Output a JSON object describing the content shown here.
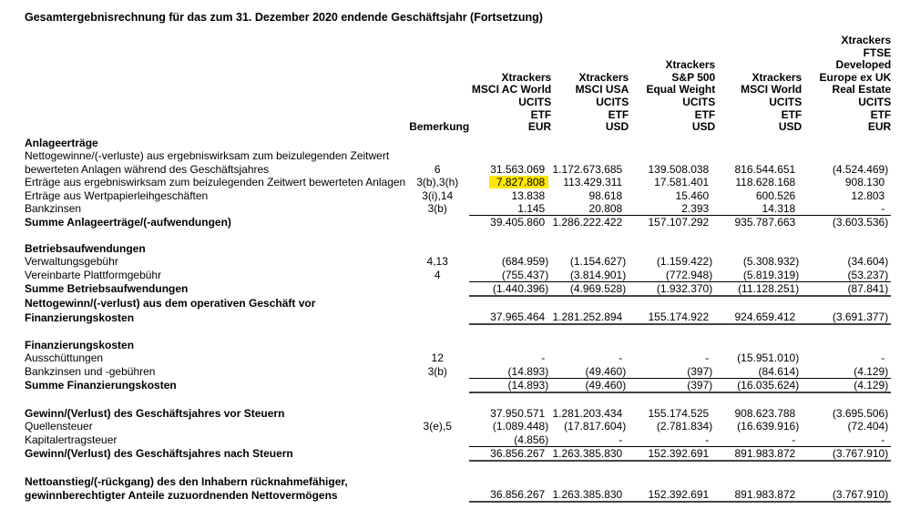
{
  "title": "Gesamtergebnisrechnung für das zum 31. Dezember 2020 endende Geschäftsjahr (Fortsetzung)",
  "header": {
    "note_label": "Bemerkung",
    "columns": [
      [
        "Xtrackers",
        "MSCI AC World",
        "UCITS",
        "ETF",
        "EUR"
      ],
      [
        "Xtrackers",
        "MSCI USA",
        "UCITS",
        "ETF",
        "USD"
      ],
      [
        "Xtrackers",
        "S&P 500",
        "Equal Weight",
        "UCITS",
        "ETF",
        "USD"
      ],
      [
        "Xtrackers",
        "MSCI World",
        "UCITS",
        "ETF",
        "USD"
      ],
      [
        "Xtrackers",
        "FTSE",
        "Developed",
        "Europe ex UK",
        "Real Estate",
        "UCITS",
        "ETF",
        "EUR"
      ]
    ]
  },
  "highlight_color": "#ffe600",
  "rows": [
    {
      "label": "Anlageerträge",
      "type": "heading"
    },
    {
      "label": "Nettogewinne/(-verluste) aus ergebniswirksam zum beizulegenden Zeitwert",
      "type": "text"
    },
    {
      "label": "bewerteten Anlagen während des Geschäftsjahres",
      "note": "6",
      "values": [
        "31.563.069",
        "1.172.673.685",
        "139.508.038",
        "816.544.651",
        "(4.524.469)"
      ]
    },
    {
      "label": "Erträge aus ergebniswirksam zum beizulegenden Zeitwert bewerteten Anlagen",
      "note": "3(b),3(h)",
      "values": [
        "7.827.808",
        "113.429.311",
        "17.581.401",
        "118.628.168",
        "908.130"
      ],
      "highlight": 0
    },
    {
      "label": "Erträge aus Wertpapierleihgeschäften",
      "note": "3(i),14",
      "values": [
        "13.838",
        "98.618",
        "15.460",
        "600.526",
        "12.803"
      ]
    },
    {
      "label": "Bankzinsen",
      "note": "3(b)",
      "values": [
        "1.145",
        "20.808",
        "2.393",
        "14.318",
        "-"
      ]
    },
    {
      "label": "Summe Anlageerträge/(-aufwendungen)",
      "type": "sum",
      "top": true,
      "values": [
        "39.405.860",
        "1.286.222.422",
        "157.107.292",
        "935.787.663",
        "(3.603.536)"
      ]
    },
    {
      "type": "gap"
    },
    {
      "label": "Betriebsaufwendungen",
      "type": "heading"
    },
    {
      "label": "Verwaltungsgebühr",
      "note": "4,13",
      "values": [
        "(684.959)",
        "(1.154.627)",
        "(1.159.422)",
        "(5.308.932)",
        "(34.604)"
      ]
    },
    {
      "label": "Vereinbarte Plattformgebühr",
      "note": "4",
      "values": [
        "(755.437)",
        "(3.814.901)",
        "(772.948)",
        "(5.819.319)",
        "(53.237)"
      ]
    },
    {
      "label": "Summe Betriebsaufwendungen",
      "type": "sum",
      "top": true,
      "bot": true,
      "values": [
        "(1.440.396)",
        "(4.969.528)",
        "(1.932.370)",
        "(11.128.251)",
        "(87.841)"
      ]
    },
    {
      "label": "Nettogewinn/(-verlust) aus dem operativen Geschäft vor",
      "type": "heading"
    },
    {
      "label": "Finanzierungskosten",
      "type": "sum",
      "bot": true,
      "values": [
        "37.965.464",
        "1.281.252.894",
        "155.174.922",
        "924.659.412",
        "(3.691.377)"
      ]
    },
    {
      "type": "gap"
    },
    {
      "label": "Finanzierungskosten",
      "type": "heading"
    },
    {
      "label": "Ausschüttungen",
      "note": "12",
      "values": [
        "-",
        "-",
        "-",
        "(15.951.010)",
        "-"
      ]
    },
    {
      "label": "Bankzinsen und -gebühren",
      "note": "3(b)",
      "values": [
        "(14.893)",
        "(49.460)",
        "(397)",
        "(84.614)",
        "(4.129)"
      ]
    },
    {
      "label": "Summe Finanzierungskosten",
      "type": "sum",
      "top": true,
      "bot": true,
      "values": [
        "(14.893)",
        "(49.460)",
        "(397)",
        "(16.035.624)",
        "(4.129)"
      ]
    },
    {
      "type": "gap"
    },
    {
      "label": "Gewinn/(Verlust) des Geschäftsjahres vor Steuern",
      "type": "sum",
      "values": [
        "37.950.571",
        "1.281.203.434",
        "155.174.525",
        "908.623.788",
        "(3.695.506)"
      ]
    },
    {
      "label": "Quellensteuer",
      "note": "3(e),5",
      "values": [
        "(1.089.448)",
        "(17.817.604)",
        "(2.781.834)",
        "(16.639.916)",
        "(72.404)"
      ]
    },
    {
      "label": "Kapitalertragsteuer",
      "values": [
        "(4.856)",
        "-",
        "-",
        "-",
        "-"
      ]
    },
    {
      "label": "Gewinn/(Verlust) des Geschäftsjahres nach Steuern",
      "type": "sum",
      "top": true,
      "bot": true,
      "values": [
        "36.856.267",
        "1.263.385.830",
        "152.392.691",
        "891.983.872",
        "(3.767.910)"
      ]
    },
    {
      "type": "gap"
    },
    {
      "label": "Nettoanstieg/(-rückgang) des den Inhabern rücknahmefähiger,",
      "type": "heading"
    },
    {
      "label": "gewinnberechtigter Anteile zuzuordnenden Nettovermögens",
      "type": "sum",
      "bot": true,
      "values": [
        "36.856.267",
        "1.263.385.830",
        "152.392.691",
        "891.983.872",
        "(3.767.910)"
      ]
    }
  ]
}
